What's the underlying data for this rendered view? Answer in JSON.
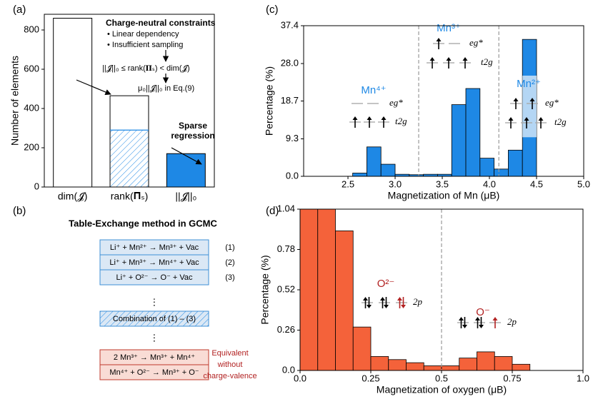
{
  "chart_data": [
    {
      "type": "bar",
      "label": "(a)",
      "ylabel": "Number of elements",
      "categories": [
        "dim(𝓙)",
        "rank(𝚷ₛ)",
        "||𝓙||₀"
      ],
      "values": [
        860,
        465,
        170
      ],
      "hatch_values": [
        null,
        290,
        null
      ],
      "colors": [
        "#ffffff",
        "#ffffff",
        "#1e88e5"
      ],
      "hatch_color": "#1e88e5",
      "ylim": [
        0,
        880
      ],
      "yticks": [
        0,
        200,
        400,
        600,
        800
      ],
      "annotations": [
        "Charge-neutral constraints",
        "• Linear dependency",
        "• Insufficient sampling",
        "||𝓙||₀ ≤ rank(𝚷ₛ) < dim(𝓙)",
        "μ₀||𝓙||₀ in Eq.(9)",
        "Sparse",
        "regression"
      ]
    },
    {
      "type": "histogram",
      "label": "(c)",
      "xlabel": "Magnetization of Mn (μB)",
      "ylabel": "Percentage (%)",
      "bins": [
        2.55,
        2.7,
        2.85,
        3.0,
        3.15,
        3.3,
        3.45,
        3.6,
        3.75,
        3.9,
        4.05,
        4.2,
        4.35,
        4.5
      ],
      "values": [
        0.8,
        7.3,
        3.0,
        0.5,
        0.4,
        0.5,
        0.5,
        17.8,
        21.8,
        4.5,
        1.8,
        6.5,
        34.0
      ],
      "color": "#1e88e5",
      "vlines": [
        3.25,
        4.1
      ],
      "highlight_x": [
        4.35,
        4.5
      ],
      "highlight_y": [
        9.7,
        25.0
      ],
      "highlight_color": "#cfe4f7",
      "xlim": [
        2.03,
        5.0
      ],
      "xticks": [
        2.5,
        {
          "value": 3.0,
          "label": "3.0"
        },
        3.5,
        {
          "value": 4.0,
          "label": "4.0"
        },
        4.5,
        {
          "value": 5.0,
          "label": "5.0"
        }
      ],
      "ylim": [
        0,
        37.4
      ],
      "yticks": [
        {
          "value": 0,
          "label": "0.0"
        },
        9.3,
        18.7,
        {
          "value": 28.0,
          "label": "28.0"
        },
        37.4
      ],
      "ion_color": "#1e88e5",
      "levels": [
        {
          "ion": "Mn⁴⁺",
          "upper": "eg*",
          "lower": "t2g"
        },
        {
          "ion": "Mn³⁺",
          "upper": "eg*",
          "lower": "t2g"
        },
        {
          "ion": "Mn²⁺",
          "upper": "eg*",
          "lower": "t2g"
        }
      ]
    },
    {
      "type": "histogram",
      "label": "(d)",
      "xlabel": "Magnetization of oxygen (μB)",
      "ylabel": "Percentage (%)",
      "bins": [
        0,
        0.0625,
        0.125,
        0.1875,
        0.25,
        0.3125,
        0.375,
        0.4375,
        0.5,
        0.5625,
        0.625,
        0.6875,
        0.75,
        0.8125
      ],
      "values": [
        1.04,
        1.04,
        0.9,
        0.28,
        0.09,
        0.07,
        0.05,
        0.03,
        0.03,
        0.08,
        0.12,
        0.09,
        0.04
      ],
      "color": "#f4623a",
      "vlines": [
        0.5
      ],
      "xlim": [
        0,
        1.0
      ],
      "xticks": [
        {
          "value": 0,
          "label": "0.0"
        },
        0.25,
        0.5,
        0.75,
        {
          "value": 1.0,
          "label": "1.0"
        }
      ],
      "ylim": [
        0,
        1.04
      ],
      "yticks": [
        {
          "value": 0,
          "label": "0.0"
        },
        0.26,
        0.52,
        0.78,
        1.04
      ],
      "ion_color": "#b22222",
      "levels": [
        {
          "ion": "O²⁻",
          "lower": "2p"
        },
        {
          "ion": "O⁻",
          "lower": "2p"
        }
      ]
    }
  ],
  "panel_b": {
    "label": "(b)",
    "title": "Table-Exchange method in GCMC",
    "reactions": [
      "Li⁺ + Mn²⁺ → Mn³⁺ + Vac",
      "Li⁺ + Mn³⁺ → Mn⁴⁺ + Vac",
      "Li⁺ + O²⁻ → O⁻ + Vac"
    ],
    "numbers": [
      "(1)",
      "(2)",
      "(3)"
    ],
    "dots": "⋮",
    "combination": "Combination of (1) – (3)",
    "equivalent_reactions": [
      "2 Mn³⁺ → Mn³⁺ + Mn⁴⁺",
      "Mn⁴⁺ + O²⁻ → Mn³⁺ + O⁻"
    ],
    "note": [
      "Equivalent",
      "without",
      "charge-valence"
    ]
  }
}
